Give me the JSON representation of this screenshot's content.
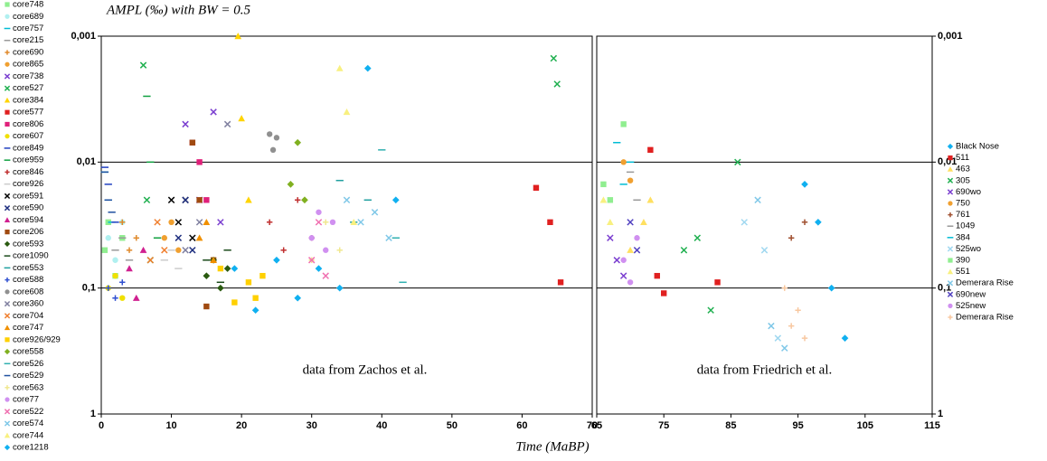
{
  "chart_data": [
    {
      "type": "scatter",
      "title": "AMPL (‰) with BW = 0.5",
      "xlabel": "Time (MaBP)",
      "annotation": "data from Zachos et al.",
      "xlim": [
        0,
        70
      ],
      "xticks": [
        0,
        10,
        20,
        30,
        40,
        50,
        60,
        70
      ],
      "ylim": [
        0.001,
        1
      ],
      "log_y": true,
      "y_inverted": true,
      "grid": true,
      "y_axis_side": "left",
      "legend": "left",
      "yticks": [
        {
          "value": 0.001,
          "label": "0,001"
        },
        {
          "value": 0.01,
          "label": "0,01"
        },
        {
          "value": 0.1,
          "label": "0,1"
        },
        1
      ],
      "series": [
        {
          "name": "core748",
          "color": "#90ee90",
          "marker": "square",
          "x": [
            0.5,
            1,
            2,
            3
          ],
          "values": [
            0.05,
            0.03,
            0.08,
            0.04
          ]
        },
        {
          "name": "core689",
          "color": "#b0f0f0",
          "marker": "circle",
          "x": [
            1,
            2,
            3
          ],
          "values": [
            0.04,
            0.06,
            0.03
          ]
        },
        {
          "name": "core757",
          "color": "#00bcd4",
          "marker": "dash",
          "x": [
            0.5,
            1,
            1.5
          ],
          "values": [
            0.012,
            0.02,
            0.03
          ]
        },
        {
          "name": "core215",
          "color": "#999999",
          "marker": "dash",
          "x": [
            2,
            3,
            4
          ],
          "values": [
            0.05,
            0.04,
            0.06
          ]
        },
        {
          "name": "core690",
          "color": "#e08a2c",
          "marker": "plus",
          "x": [
            3,
            4,
            5
          ],
          "values": [
            0.03,
            0.05,
            0.04
          ]
        },
        {
          "name": "core865",
          "color": "#f0a030",
          "marker": "circle",
          "x": [
            9,
            10,
            11
          ],
          "values": [
            0.04,
            0.03,
            0.05
          ]
        },
        {
          "name": "core738",
          "color": "#7b3fd0",
          "marker": "x",
          "x": [
            12,
            14,
            16,
            17
          ],
          "values": [
            0.005,
            0.02,
            0.004,
            0.03
          ]
        },
        {
          "name": "core527",
          "color": "#20b050",
          "marker": "x",
          "x": [
            6,
            6.5,
            7,
            64.5,
            65
          ],
          "values": [
            0.0017,
            0.02,
            0.06,
            0.0015,
            0.0024
          ]
        },
        {
          "name": "core384",
          "color": "#ffd400",
          "marker": "triangle",
          "x": [
            19.5,
            20,
            21
          ],
          "values": [
            0.001,
            0.0045,
            0.02
          ]
        },
        {
          "name": "core577",
          "color": "#e02020",
          "marker": "square",
          "x": [
            62,
            64,
            65.5
          ],
          "values": [
            0.016,
            0.03,
            0.09
          ]
        },
        {
          "name": "core806",
          "color": "#e0207a",
          "marker": "square",
          "x": [
            13,
            14,
            15
          ],
          "values": [
            0.007,
            0.01,
            0.02
          ]
        },
        {
          "name": "core607",
          "color": "#f0e000",
          "marker": "circle",
          "x": [
            1,
            2,
            3
          ],
          "values": [
            0.1,
            0.08,
            0.12
          ]
        },
        {
          "name": "core849",
          "color": "#2040c0",
          "marker": "dash",
          "x": [
            0.5,
            1,
            2
          ],
          "values": [
            0.011,
            0.015,
            0.03
          ]
        },
        {
          "name": "core959",
          "color": "#10a040",
          "marker": "dash",
          "x": [
            6.5,
            7,
            8
          ],
          "values": [
            0.003,
            0.01,
            0.04
          ]
        },
        {
          "name": "core846",
          "color": "#c03030",
          "marker": "plus",
          "x": [
            24,
            26,
            28,
            30
          ],
          "values": [
            0.03,
            0.05,
            0.02,
            0.04
          ]
        },
        {
          "name": "core926",
          "color": "#cccccc",
          "marker": "dash",
          "x": [
            9,
            10,
            11
          ],
          "values": [
            0.06,
            0.05,
            0.07
          ]
        },
        {
          "name": "core591",
          "color": "#000000",
          "marker": "x",
          "x": [
            10,
            11,
            12,
            13
          ],
          "values": [
            0.02,
            0.03,
            0.02,
            0.04
          ]
        },
        {
          "name": "core590",
          "color": "#203080",
          "marker": "x",
          "x": [
            11,
            12,
            13
          ],
          "values": [
            0.04,
            0.02,
            0.05
          ]
        },
        {
          "name": "core594",
          "color": "#d02090",
          "marker": "triangle",
          "x": [
            4,
            5,
            6
          ],
          "values": [
            0.07,
            0.12,
            0.05
          ]
        },
        {
          "name": "core206",
          "color": "#a04a10",
          "marker": "square",
          "x": [
            13,
            14,
            15,
            16
          ],
          "values": [
            0.007,
            0.02,
            0.14,
            0.06
          ]
        },
        {
          "name": "core593",
          "color": "#2a5a10",
          "marker": "diamond",
          "x": [
            15,
            16,
            17,
            18
          ],
          "values": [
            0.08,
            0.06,
            0.1,
            0.07
          ]
        },
        {
          "name": "core1090",
          "color": "#1a4a1a",
          "marker": "dash",
          "x": [
            15,
            17,
            18
          ],
          "values": [
            0.06,
            0.09,
            0.05
          ]
        },
        {
          "name": "core553",
          "color": "#20a0a0",
          "marker": "dash",
          "x": [
            34,
            36,
            38
          ],
          "values": [
            0.014,
            0.03,
            0.02
          ]
        },
        {
          "name": "core588",
          "color": "#3050d0",
          "marker": "plus",
          "x": [
            1,
            2,
            3
          ],
          "values": [
            0.1,
            0.12,
            0.09
          ]
        },
        {
          "name": "core608",
          "color": "#909090",
          "marker": "circle",
          "x": [
            24,
            24.5,
            25
          ],
          "values": [
            0.006,
            0.008,
            0.0064
          ]
        },
        {
          "name": "core360",
          "color": "#8080a0",
          "marker": "x",
          "x": [
            12,
            14,
            18
          ],
          "values": [
            0.05,
            0.03,
            0.005
          ]
        },
        {
          "name": "core704",
          "color": "#f08030",
          "marker": "x",
          "x": [
            7,
            8,
            9
          ],
          "values": [
            0.06,
            0.03,
            0.05
          ]
        },
        {
          "name": "core747",
          "color": "#f09000",
          "marker": "triangle",
          "x": [
            14,
            15,
            16
          ],
          "values": [
            0.04,
            0.03,
            0.06
          ]
        },
        {
          "name": "core926/929",
          "color": "#ffd000",
          "marker": "square",
          "x": [
            17,
            19,
            21,
            22,
            23
          ],
          "values": [
            0.07,
            0.13,
            0.09,
            0.12,
            0.08
          ]
        },
        {
          "name": "core558",
          "color": "#80b020",
          "marker": "diamond",
          "x": [
            27,
            28,
            29
          ],
          "values": [
            0.015,
            0.007,
            0.02
          ]
        },
        {
          "name": "core526",
          "color": "#30b0b0",
          "marker": "dash",
          "x": [
            40,
            42,
            43
          ],
          "values": [
            0.008,
            0.04,
            0.09
          ]
        },
        {
          "name": "core529",
          "color": "#2050a0",
          "marker": "dash",
          "x": [
            0.5,
            1,
            1.5
          ],
          "values": [
            0.012,
            0.02,
            0.025
          ]
        },
        {
          "name": "core563",
          "color": "#f0e890",
          "marker": "plus",
          "x": [
            30,
            32,
            34
          ],
          "values": [
            0.06,
            0.03,
            0.05
          ]
        },
        {
          "name": "core77",
          "color": "#d090f0",
          "marker": "circle",
          "x": [
            30,
            31,
            32,
            33
          ],
          "values": [
            0.04,
            0.025,
            0.05,
            0.03
          ]
        },
        {
          "name": "core522",
          "color": "#f070b0",
          "marker": "x",
          "x": [
            30,
            31,
            32
          ],
          "values": [
            0.06,
            0.03,
            0.08
          ]
        },
        {
          "name": "core574",
          "color": "#80c8e8",
          "marker": "x",
          "x": [
            35,
            37,
            39,
            41
          ],
          "values": [
            0.02,
            0.03,
            0.025,
            0.04
          ]
        },
        {
          "name": "core744",
          "color": "#f8f080",
          "marker": "triangle",
          "x": [
            34,
            35,
            36
          ],
          "values": [
            0.0018,
            0.004,
            0.03
          ]
        },
        {
          "name": "core1218",
          "color": "#10b0f0",
          "marker": "diamond",
          "x": [
            19,
            22,
            25,
            28,
            31,
            34,
            38,
            42
          ],
          "values": [
            0.07,
            0.15,
            0.06,
            0.12,
            0.07,
            0.1,
            0.0018,
            0.02
          ]
        }
      ]
    },
    {
      "type": "scatter",
      "annotation": "data from Friedrich et al.",
      "xlim": [
        65,
        115
      ],
      "xticks": [
        65,
        75,
        85,
        95,
        105,
        115
      ],
      "ylim": [
        0.001,
        1
      ],
      "log_y": true,
      "y_inverted": true,
      "grid": true,
      "y_axis_side": "right",
      "legend": "right",
      "yticks": [
        {
          "value": 0.001,
          "label": "0,001"
        },
        {
          "value": 0.01,
          "label": "0,01"
        },
        {
          "value": 0.1,
          "label": "0,1"
        },
        1
      ],
      "series": [
        {
          "name": "Black Nose",
          "color": "#10b0f0",
          "marker": "diamond",
          "x": [
            96,
            98,
            100,
            102
          ],
          "values": [
            0.015,
            0.03,
            0.1,
            0.25
          ]
        },
        {
          "name": "511",
          "color": "#e02020",
          "marker": "square",
          "x": [
            73,
            74,
            75,
            83
          ],
          "values": [
            0.008,
            0.08,
            0.11,
            0.09
          ]
        },
        {
          "name": "463",
          "color": "#ffe060",
          "marker": "triangle",
          "x": [
            70,
            72,
            73
          ],
          "values": [
            0.05,
            0.03,
            0.02
          ]
        },
        {
          "name": "305",
          "color": "#20b050",
          "marker": "x",
          "x": [
            78,
            80,
            82,
            86
          ],
          "values": [
            0.05,
            0.04,
            0.15,
            0.01
          ]
        },
        {
          "name": "690wo",
          "color": "#7b3fd0",
          "marker": "x",
          "x": [
            67,
            68,
            69
          ],
          "values": [
            0.04,
            0.06,
            0.08
          ]
        },
        {
          "name": "750",
          "color": "#f0a030",
          "marker": "circle",
          "x": [
            69,
            70
          ],
          "values": [
            0.01,
            0.014
          ]
        },
        {
          "name": "761",
          "color": "#a05030",
          "marker": "plus",
          "x": [
            94,
            96
          ],
          "values": [
            0.04,
            0.03
          ]
        },
        {
          "name": "1049",
          "color": "#999999",
          "marker": "dash",
          "x": [
            70,
            71
          ],
          "values": [
            0.012,
            0.02
          ]
        },
        {
          "name": "384",
          "color": "#00bcd4",
          "marker": "dash",
          "x": [
            68,
            69,
            70
          ],
          "values": [
            0.007,
            0.015,
            0.01
          ]
        },
        {
          "name": "525wo",
          "color": "#a0d8f0",
          "marker": "x",
          "x": [
            87,
            90,
            92
          ],
          "values": [
            0.03,
            0.05,
            0.25
          ]
        },
        {
          "name": "390",
          "color": "#90ee90",
          "marker": "square",
          "x": [
            66,
            67,
            69
          ],
          "values": [
            0.015,
            0.02,
            0.005
          ]
        },
        {
          "name": "551",
          "color": "#f8f080",
          "marker": "triangle",
          "x": [
            66,
            67
          ],
          "values": [
            0.02,
            0.03
          ]
        },
        {
          "name": "Demerara Rise",
          "color": "#80c8e8",
          "marker": "x",
          "x": [
            89,
            91,
            93
          ],
          "values": [
            0.02,
            0.2,
            0.3
          ]
        },
        {
          "name": "690new",
          "color": "#5040c0",
          "marker": "x",
          "x": [
            70,
            71
          ],
          "values": [
            0.03,
            0.05
          ]
        },
        {
          "name": "525new",
          "color": "#d090f0",
          "marker": "circle",
          "x": [
            69,
            70,
            71
          ],
          "values": [
            0.06,
            0.09,
            0.04
          ]
        },
        {
          "name": "Demerara Rise",
          "color": "#f8c8a0",
          "marker": "plus",
          "x": [
            93,
            94,
            95,
            96
          ],
          "values": [
            0.1,
            0.2,
            0.15,
            0.25
          ]
        }
      ]
    }
  ]
}
